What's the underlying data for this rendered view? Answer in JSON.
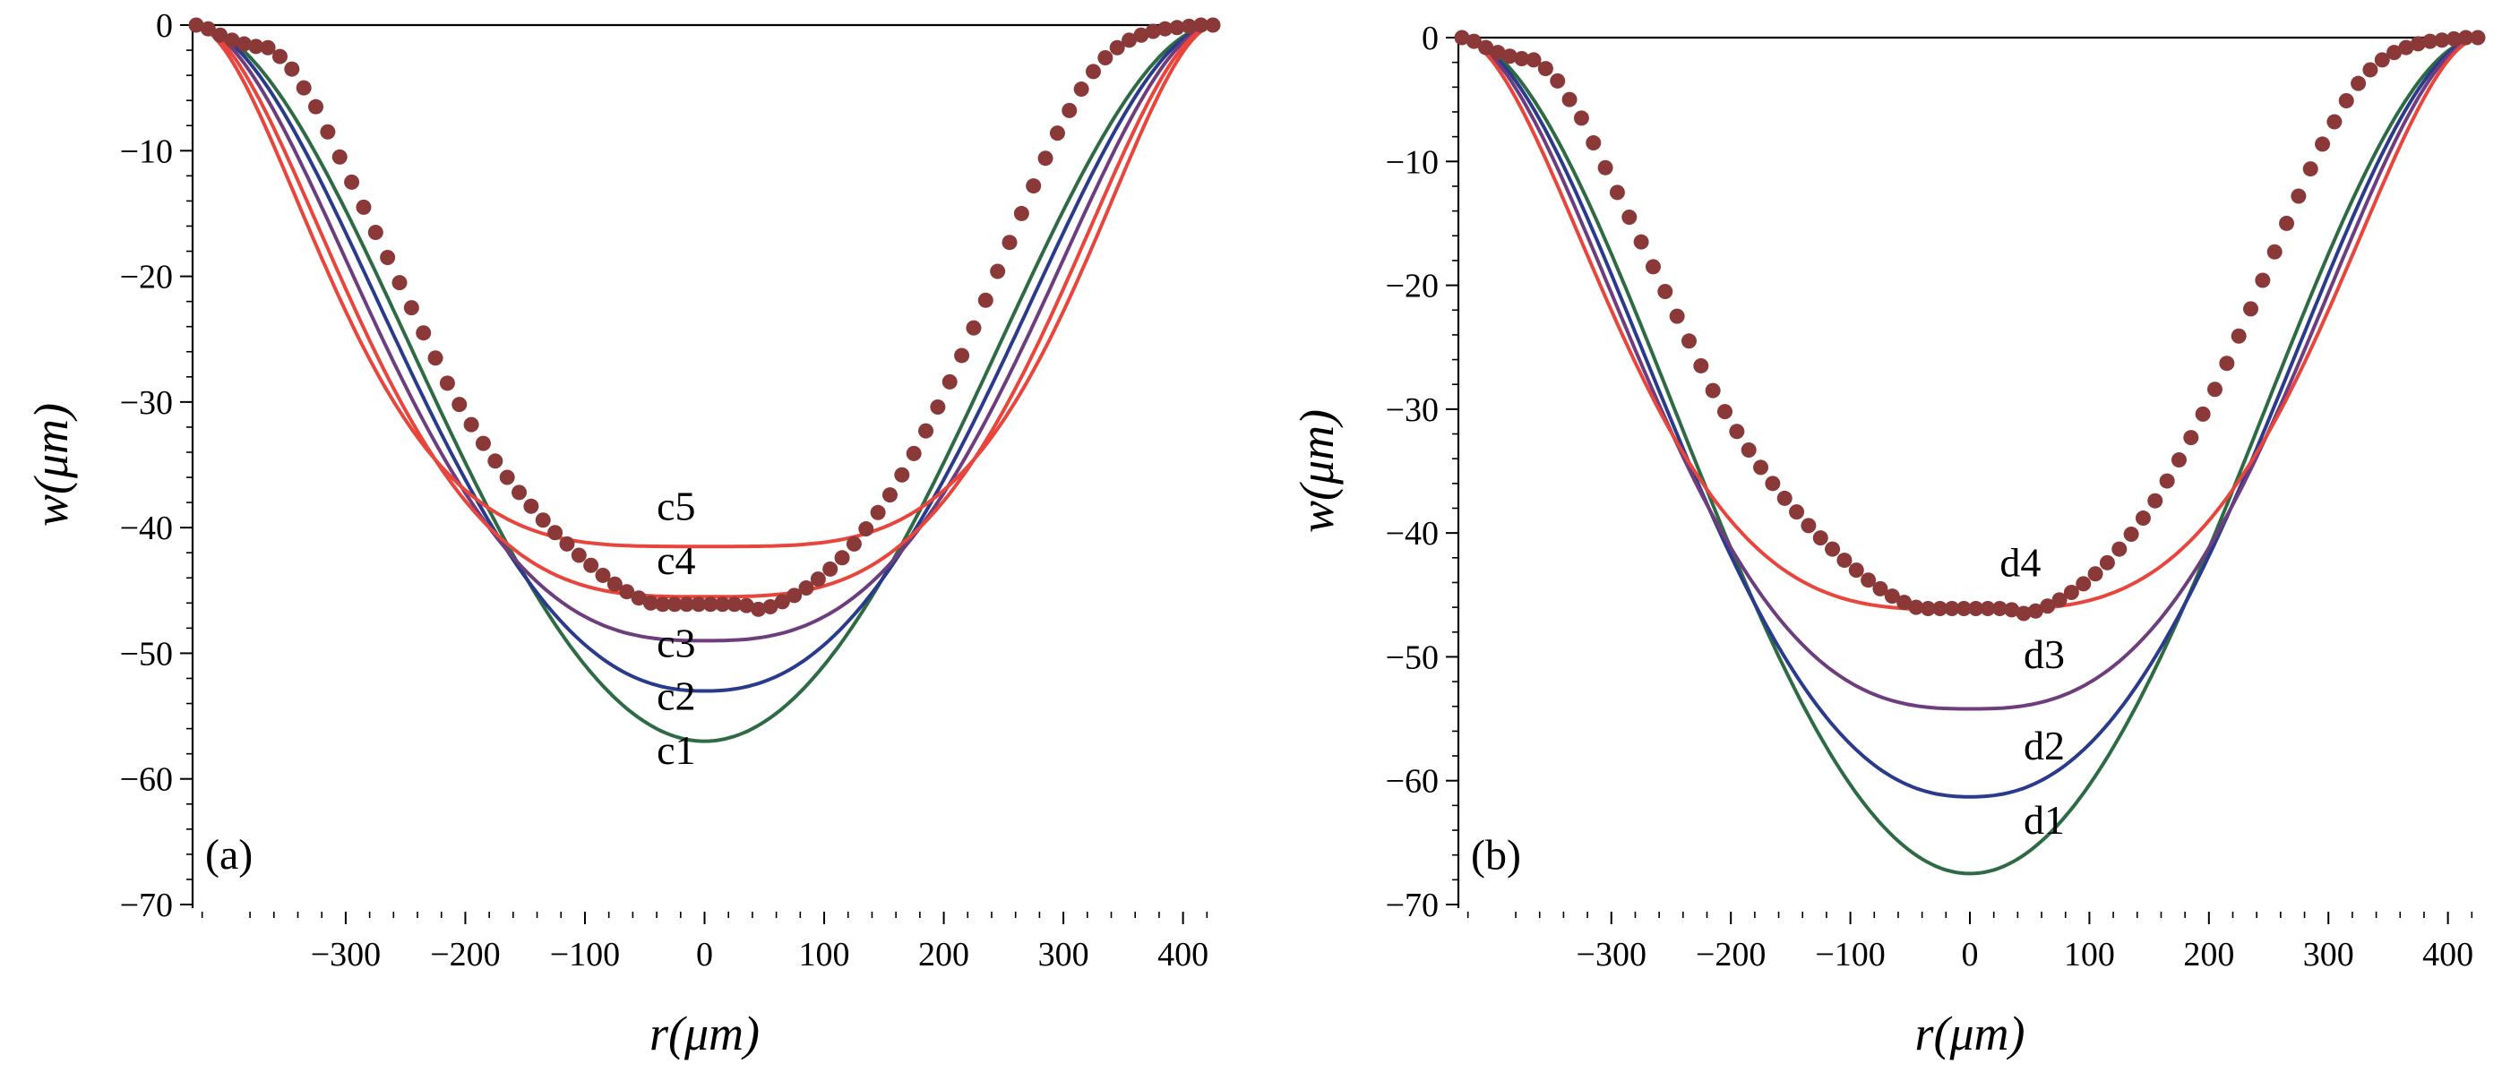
{
  "colors": {
    "c1": "#2e6b45",
    "c2": "#2b3b8c",
    "c3": "#6e3d7e",
    "c4": "#e8453c",
    "c5": "#e8453c",
    "measured": "#8b3838"
  },
  "chart_data": [
    {
      "type": "line",
      "panel_label": "(a)",
      "xlabel": "r(μm)",
      "ylabel": "w(μm)",
      "xlim": [
        -428,
        428
      ],
      "ylim": [
        -70,
        0
      ],
      "x_ticks": [
        -300,
        -200,
        -100,
        0,
        100,
        200,
        300,
        400
      ],
      "x_tick_labels": [
        "−300",
        "−200",
        "−100",
        "0",
        "100",
        "200",
        "300",
        "400"
      ],
      "y_ticks": [
        0,
        -10,
        -20,
        -30,
        -40,
        -50,
        -60,
        -70
      ],
      "y_tick_labels": [
        "0",
        "−10",
        "−20",
        "−30",
        "−40",
        "−50",
        "−60",
        "−70"
      ],
      "series": [
        {
          "name": "c1",
          "label_x": -40,
          "label_y": -58.8,
          "center": -57,
          "shape": 2.0,
          "color_key": "c1"
        },
        {
          "name": "c2",
          "label_x": -40,
          "label_y": -54.5,
          "center": -53,
          "shape": 2.3,
          "color_key": "c2"
        },
        {
          "name": "c3",
          "label_x": -40,
          "label_y": -50.3,
          "center": -49,
          "shape": 2.7,
          "color_key": "c3"
        },
        {
          "name": "c4",
          "label_x": -40,
          "label_y": -43.7,
          "center": -45.5,
          "shape": 3.2,
          "color_key": "c4"
        },
        {
          "name": "c5",
          "label_x": -40,
          "label_y": -39.4,
          "center": -41.5,
          "shape": 3.8,
          "color_key": "c5"
        }
      ],
      "measured": {
        "color_key": "measured",
        "points": [
          [
            -425,
            0
          ],
          [
            -415,
            -0.3
          ],
          [
            -405,
            -0.8
          ],
          [
            -395,
            -1.2
          ],
          [
            -385,
            -1.5
          ],
          [
            -375,
            -1.7
          ],
          [
            -365,
            -1.8
          ],
          [
            -355,
            -2.5
          ],
          [
            -345,
            -3.5
          ],
          [
            -335,
            -5
          ],
          [
            -325,
            -6.5
          ],
          [
            -315,
            -8.5
          ],
          [
            -305,
            -10.5
          ],
          [
            -295,
            -12.5
          ],
          [
            -285,
            -14.5
          ],
          [
            -275,
            -16.5
          ],
          [
            -265,
            -18.5
          ],
          [
            -255,
            -20.5
          ],
          [
            -245,
            -22.5
          ],
          [
            -235,
            -24.5
          ],
          [
            -225,
            -26.5
          ],
          [
            -215,
            -28.5
          ],
          [
            -205,
            -30.2
          ],
          [
            -195,
            -31.8
          ],
          [
            -185,
            -33.3
          ],
          [
            -175,
            -34.7
          ],
          [
            -165,
            -36
          ],
          [
            -155,
            -37.2
          ],
          [
            -145,
            -38.3
          ],
          [
            -135,
            -39.4
          ],
          [
            -125,
            -40.4
          ],
          [
            -115,
            -41.3
          ],
          [
            -105,
            -42.2
          ],
          [
            -95,
            -43
          ],
          [
            -85,
            -43.8
          ],
          [
            -75,
            -44.5
          ],
          [
            -65,
            -45.1
          ],
          [
            -55,
            -45.6
          ],
          [
            -45,
            -46
          ],
          [
            -35,
            -46.1
          ],
          [
            -25,
            -46.1
          ],
          [
            -15,
            -46.1
          ],
          [
            -5,
            -46.1
          ],
          [
            5,
            -46.1
          ],
          [
            15,
            -46.1
          ],
          [
            25,
            -46.1
          ],
          [
            35,
            -46.2
          ],
          [
            45,
            -46.5
          ],
          [
            55,
            -46.3
          ],
          [
            65,
            -45.9
          ],
          [
            75,
            -45.4
          ],
          [
            85,
            -44.8
          ],
          [
            95,
            -44.1
          ],
          [
            105,
            -43.3
          ],
          [
            115,
            -42.4
          ],
          [
            125,
            -41.3
          ],
          [
            135,
            -40.1
          ],
          [
            145,
            -38.8
          ],
          [
            155,
            -37.4
          ],
          [
            165,
            -35.8
          ],
          [
            175,
            -34.1
          ],
          [
            185,
            -32.3
          ],
          [
            195,
            -30.4
          ],
          [
            205,
            -28.4
          ],
          [
            215,
            -26.3
          ],
          [
            225,
            -24.1
          ],
          [
            235,
            -21.9
          ],
          [
            245,
            -19.6
          ],
          [
            255,
            -17.3
          ],
          [
            265,
            -15
          ],
          [
            275,
            -12.8
          ],
          [
            285,
            -10.6
          ],
          [
            295,
            -8.6
          ],
          [
            305,
            -6.8
          ],
          [
            315,
            -5.1
          ],
          [
            325,
            -3.7
          ],
          [
            335,
            -2.6
          ],
          [
            345,
            -1.8
          ],
          [
            355,
            -1.2
          ],
          [
            365,
            -0.8
          ],
          [
            375,
            -0.5
          ],
          [
            385,
            -0.3
          ],
          [
            395,
            -0.2
          ],
          [
            405,
            -0.1
          ],
          [
            415,
            0
          ],
          [
            425,
            0
          ]
        ]
      }
    },
    {
      "type": "line",
      "panel_label": "(b)",
      "xlabel": "r(μm)",
      "ylabel": "w(μm)",
      "xlim": [
        -428,
        428
      ],
      "ylim": [
        -70,
        0
      ],
      "x_ticks": [
        -300,
        -200,
        -100,
        0,
        100,
        200,
        300,
        400
      ],
      "x_tick_labels": [
        "−300",
        "−200",
        "−100",
        "0",
        "100",
        "200",
        "300",
        "400"
      ],
      "y_ticks": [
        0,
        -10,
        -20,
        -30,
        -40,
        -50,
        -60,
        -70
      ],
      "y_tick_labels": [
        "0",
        "−10",
        "−20",
        "−30",
        "−40",
        "−50",
        "−60",
        "−70"
      ],
      "series": [
        {
          "name": "d1",
          "label_x": 45,
          "label_y": -64.3,
          "center": -67.5,
          "shape": 2.0,
          "color_key": "c1"
        },
        {
          "name": "d2",
          "label_x": 45,
          "label_y": -58.3,
          "center": -61.3,
          "shape": 2.3,
          "color_key": "c2"
        },
        {
          "name": "d3",
          "label_x": 45,
          "label_y": -50.9,
          "center": -54.2,
          "shape": 2.7,
          "color_key": "c3"
        },
        {
          "name": "d4",
          "label_x": 25,
          "label_y": -43.5,
          "center": -46.2,
          "shape": 3.3,
          "color_key": "c4"
        }
      ],
      "measured": {
        "color_key": "measured",
        "points": [
          [
            -425,
            0
          ],
          [
            -415,
            -0.3
          ],
          [
            -405,
            -0.8
          ],
          [
            -395,
            -1.2
          ],
          [
            -385,
            -1.5
          ],
          [
            -375,
            -1.7
          ],
          [
            -365,
            -1.8
          ],
          [
            -355,
            -2.5
          ],
          [
            -345,
            -3.5
          ],
          [
            -335,
            -5
          ],
          [
            -325,
            -6.5
          ],
          [
            -315,
            -8.5
          ],
          [
            -305,
            -10.5
          ],
          [
            -295,
            -12.5
          ],
          [
            -285,
            -14.5
          ],
          [
            -275,
            -16.5
          ],
          [
            -265,
            -18.5
          ],
          [
            -255,
            -20.5
          ],
          [
            -245,
            -22.5
          ],
          [
            -235,
            -24.5
          ],
          [
            -225,
            -26.5
          ],
          [
            -215,
            -28.5
          ],
          [
            -205,
            -30.2
          ],
          [
            -195,
            -31.8
          ],
          [
            -185,
            -33.3
          ],
          [
            -175,
            -34.7
          ],
          [
            -165,
            -36
          ],
          [
            -155,
            -37.2
          ],
          [
            -145,
            -38.3
          ],
          [
            -135,
            -39.4
          ],
          [
            -125,
            -40.4
          ],
          [
            -115,
            -41.3
          ],
          [
            -105,
            -42.2
          ],
          [
            -95,
            -43
          ],
          [
            -85,
            -43.8
          ],
          [
            -75,
            -44.5
          ],
          [
            -65,
            -45.1
          ],
          [
            -55,
            -45.6
          ],
          [
            -45,
            -46
          ],
          [
            -35,
            -46.1
          ],
          [
            -25,
            -46.1
          ],
          [
            -15,
            -46.1
          ],
          [
            -5,
            -46.1
          ],
          [
            5,
            -46.1
          ],
          [
            15,
            -46.1
          ],
          [
            25,
            -46.1
          ],
          [
            35,
            -46.2
          ],
          [
            45,
            -46.5
          ],
          [
            55,
            -46.3
          ],
          [
            65,
            -45.9
          ],
          [
            75,
            -45.4
          ],
          [
            85,
            -44.8
          ],
          [
            95,
            -44.1
          ],
          [
            105,
            -43.3
          ],
          [
            115,
            -42.4
          ],
          [
            125,
            -41.3
          ],
          [
            135,
            -40.1
          ],
          [
            145,
            -38.8
          ],
          [
            155,
            -37.4
          ],
          [
            165,
            -35.8
          ],
          [
            175,
            -34.1
          ],
          [
            185,
            -32.3
          ],
          [
            195,
            -30.4
          ],
          [
            205,
            -28.4
          ],
          [
            215,
            -26.3
          ],
          [
            225,
            -24.1
          ],
          [
            235,
            -21.9
          ],
          [
            245,
            -19.6
          ],
          [
            255,
            -17.3
          ],
          [
            265,
            -15
          ],
          [
            275,
            -12.8
          ],
          [
            285,
            -10.6
          ],
          [
            295,
            -8.6
          ],
          [
            305,
            -6.8
          ],
          [
            315,
            -5.1
          ],
          [
            325,
            -3.7
          ],
          [
            335,
            -2.6
          ],
          [
            345,
            -1.8
          ],
          [
            355,
            -1.2
          ],
          [
            365,
            -0.8
          ],
          [
            375,
            -0.5
          ],
          [
            385,
            -0.3
          ],
          [
            395,
            -0.2
          ],
          [
            405,
            -0.1
          ],
          [
            415,
            0
          ],
          [
            425,
            0
          ]
        ]
      }
    }
  ]
}
